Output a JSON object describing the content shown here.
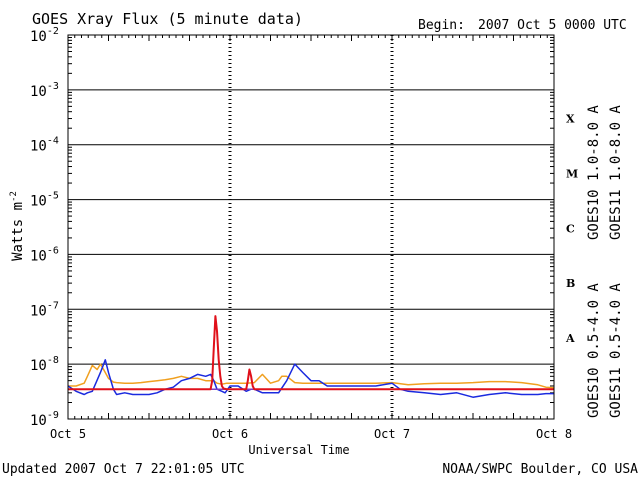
{
  "header": {
    "title": "GOES Xray Flux (5 minute data)",
    "begin_label": "Begin:",
    "begin_value": "2007 Oct 5 0000 UTC"
  },
  "footer": {
    "updated": "Updated 2007 Oct  7 22:01:05 UTC",
    "credit": "NOAA/SWPC Boulder, CO USA"
  },
  "chart_data": {
    "type": "line",
    "title": "GOES Xray Flux (5 minute data)",
    "xlabel": "Universal Time",
    "ylabel": "Watts m",
    "ylabel_sup": "-2",
    "yscale": "log",
    "ylim": [
      1e-09,
      0.01
    ],
    "xlim": [
      "Oct 5",
      "Oct 8"
    ],
    "x_unit": "days since Oct 5 0000 UTC",
    "y_ticks": [
      {
        "base": "10",
        "exp": "-2",
        "value": 0.01
      },
      {
        "base": "10",
        "exp": "-3",
        "value": 0.001
      },
      {
        "base": "10",
        "exp": "-4",
        "value": 0.0001
      },
      {
        "base": "10",
        "exp": "-5",
        "value": 1e-05
      },
      {
        "base": "10",
        "exp": "-6",
        "value": 1e-06
      },
      {
        "base": "10",
        "exp": "-7",
        "value": 1e-07
      },
      {
        "base": "10",
        "exp": "-8",
        "value": 1e-08
      },
      {
        "base": "10",
        "exp": "-9",
        "value": 1e-09
      }
    ],
    "x_ticks": [
      "Oct 5",
      "Oct 6",
      "Oct 7",
      "Oct 8"
    ],
    "flare_classes": [
      {
        "label": "X",
        "value": 0.0003
      },
      {
        "label": "M",
        "value": 3e-05
      },
      {
        "label": "C",
        "value": 3e-06
      },
      {
        "label": "B",
        "value": 3e-07
      },
      {
        "label": "A",
        "value": 3e-08
      }
    ],
    "legend_right_top": [
      {
        "name": "GOES10 1.0-8.0 A",
        "color": "#7f3fbf"
      },
      {
        "name": "GOES11 1.0-8.0 A",
        "color": "#e0101a"
      }
    ],
    "legend_right_bottom": [
      {
        "name": "GOES10 0.5-4.0 A",
        "color": "#f0a020"
      },
      {
        "name": "GOES11 0.5-4.0 A",
        "color": "#1a2adf"
      }
    ],
    "series": [
      {
        "name": "GOES10 0.5-4.0 A",
        "color": "#f0a020",
        "x": [
          0,
          0.05,
          0.1,
          0.12,
          0.15,
          0.18,
          0.2,
          0.22,
          0.25,
          0.28,
          0.3,
          0.35,
          0.4,
          0.45,
          0.5,
          0.55,
          0.6,
          0.65,
          0.7,
          0.75,
          0.8,
          0.85,
          0.9,
          0.92,
          0.95,
          0.98,
          1.0,
          1.05,
          1.1,
          1.15,
          1.2,
          1.25,
          1.3,
          1.32,
          1.35,
          1.4,
          1.45,
          1.5,
          1.55,
          1.6,
          1.7,
          1.8,
          1.9,
          2.0,
          2.1,
          2.2,
          2.3,
          2.4,
          2.5,
          2.6,
          2.7,
          2.8,
          2.9,
          2.95,
          3.0
        ],
        "y": [
          4e-09,
          4e-09,
          4.5e-09,
          6e-09,
          9.5e-09,
          8e-09,
          1e-08,
          8e-09,
          5.5e-09,
          4.7e-09,
          4.6e-09,
          4.5e-09,
          4.5e-09,
          4.6e-09,
          4.8e-09,
          5e-09,
          5.2e-09,
          5.5e-09,
          6e-09,
          5.5e-09,
          5.5e-09,
          5e-09,
          5e-09,
          4.5e-09,
          4.3e-09,
          4.5e-09,
          4.5e-09,
          4.5e-09,
          4.5e-09,
          4.6e-09,
          6.5e-09,
          4.5e-09,
          5e-09,
          6e-09,
          6e-09,
          4.6e-09,
          4.5e-09,
          4.5e-09,
          4.5e-09,
          4.5e-09,
          4.5e-09,
          4.5e-09,
          4.5e-09,
          4.6e-09,
          4.2e-09,
          4.4e-09,
          4.5e-09,
          4.5e-09,
          4.6e-09,
          4.8e-09,
          4.8e-09,
          4.6e-09,
          4.2e-09,
          3.8e-09,
          3.7e-09
        ]
      },
      {
        "name": "GOES11 0.5-4.0 A",
        "color": "#1a2adf",
        "x": [
          0,
          0.05,
          0.1,
          0.12,
          0.15,
          0.2,
          0.23,
          0.25,
          0.28,
          0.3,
          0.35,
          0.4,
          0.45,
          0.5,
          0.55,
          0.6,
          0.65,
          0.7,
          0.75,
          0.8,
          0.85,
          0.88,
          0.9,
          0.92,
          0.95,
          0.97,
          1.0,
          1.05,
          1.1,
          1.13,
          1.15,
          1.2,
          1.25,
          1.3,
          1.35,
          1.4,
          1.45,
          1.5,
          1.55,
          1.6,
          1.7,
          1.8,
          1.9,
          2.0,
          2.05,
          2.1,
          2.2,
          2.3,
          2.4,
          2.5,
          2.6,
          2.7,
          2.8,
          2.9,
          2.95,
          3.0
        ],
        "y": [
          4e-09,
          3.2e-09,
          2.8e-09,
          3e-09,
          3.2e-09,
          7e-09,
          1.2e-08,
          7e-09,
          3.5e-09,
          2.8e-09,
          3e-09,
          2.8e-09,
          2.8e-09,
          2.8e-09,
          3e-09,
          3.5e-09,
          3.8e-09,
          5e-09,
          5.5e-09,
          6.5e-09,
          6e-09,
          6.5e-09,
          5e-09,
          3.5e-09,
          3.2e-09,
          3e-09,
          4e-09,
          4e-09,
          3.2e-09,
          3.5e-09,
          3.5e-09,
          3e-09,
          3e-09,
          3e-09,
          5e-09,
          1e-08,
          7e-09,
          5e-09,
          5e-09,
          4e-09,
          4e-09,
          4e-09,
          4e-09,
          4.5e-09,
          3.5e-09,
          3.2e-09,
          3e-09,
          2.8e-09,
          3e-09,
          2.5e-09,
          2.8e-09,
          3e-09,
          2.8e-09,
          2.8e-09,
          2.9e-09,
          2.9e-09
        ]
      },
      {
        "name": "GOES10 1.0-8.0 A",
        "color": "#7f3fbf",
        "x": [
          0,
          3.0
        ],
        "y": [
          3.5e-09,
          3.5e-09
        ]
      },
      {
        "name": "GOES11 1.0-8.0 A",
        "color": "#e0101a",
        "x": [
          0,
          0.88,
          0.89,
          0.9,
          0.91,
          0.92,
          0.93,
          0.94,
          0.95,
          0.96,
          0.98,
          1.0,
          1.1,
          1.11,
          1.12,
          1.13,
          1.14,
          1.15,
          1.2,
          3.0
        ],
        "y": [
          3.5e-09,
          3.5e-09,
          5e-09,
          2e-08,
          7.5e-08,
          4e-08,
          1.2e-08,
          6e-09,
          4e-09,
          3.6e-09,
          3.5e-09,
          3.5e-09,
          3.5e-09,
          5e-09,
          8e-09,
          6e-09,
          4e-09,
          3.5e-09,
          3.5e-09,
          3.5e-09
        ]
      }
    ]
  }
}
